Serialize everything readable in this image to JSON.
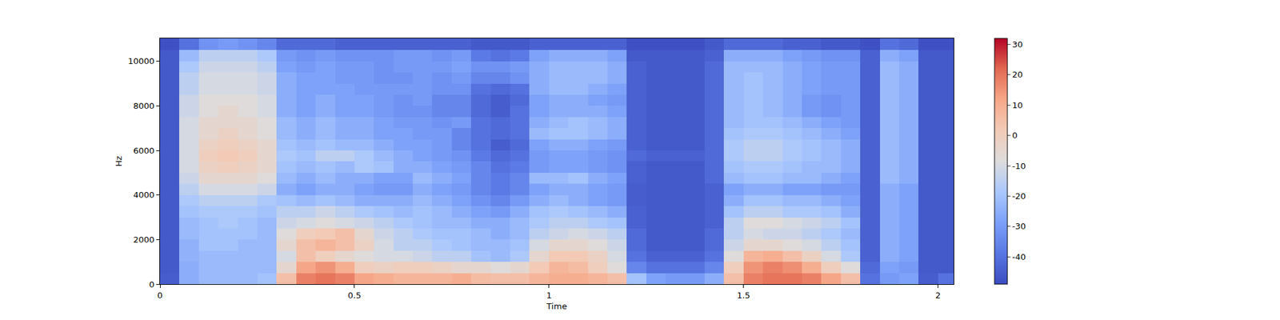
{
  "chart_data": {
    "type": "heatmap",
    "xlabel": "Time",
    "ylabel": "Hz",
    "x": [
      0,
      0.05,
      0.1,
      0.15,
      0.2,
      0.25,
      0.3,
      0.35,
      0.4,
      0.45,
      0.5,
      0.55,
      0.6,
      0.65,
      0.7,
      0.75,
      0.8,
      0.85,
      0.9,
      0.95,
      1,
      1.05,
      1.1,
      1.15,
      1.2,
      1.25,
      1.3,
      1.35,
      1.4,
      1.45,
      1.5,
      1.55,
      1.6,
      1.65,
      1.7,
      1.75,
      1.8,
      1.85,
      1.9,
      1.95,
      2,
      2.05
    ],
    "y": [
      0,
      500,
      1000,
      1500,
      2000,
      2500,
      3000,
      3500,
      4000,
      4500,
      5000,
      5500,
      6000,
      6500,
      7000,
      7500,
      8000,
      8500,
      9000,
      9500,
      10000,
      10500,
      11025
    ],
    "xlim": [
      0,
      2.04
    ],
    "ylim": [
      0,
      11025
    ],
    "xticks": [
      0,
      0.5,
      1,
      1.5,
      2
    ],
    "yticks": [
      0,
      2000,
      4000,
      6000,
      8000,
      10000
    ],
    "cells": [
      [
        -45,
        -25,
        -22,
        -22,
        -22,
        -20,
        5,
        18,
        20,
        18,
        12,
        10,
        8,
        8,
        8,
        10,
        6,
        5,
        5,
        8,
        10,
        10,
        8,
        5,
        -20,
        -28,
        -30,
        -30,
        -25,
        5,
        18,
        20,
        20,
        18,
        12,
        5,
        -40,
        -30,
        -28,
        -45,
        -40
      ],
      [
        -46,
        -25,
        -22,
        -22,
        -22,
        -22,
        -5,
        12,
        15,
        10,
        0,
        -2,
        0,
        0,
        -2,
        -5,
        -5,
        -8,
        -5,
        2,
        8,
        6,
        0,
        -8,
        -35,
        -40,
        -40,
        -40,
        -35,
        0,
        15,
        18,
        16,
        10,
        0,
        -8,
        -42,
        -28,
        -30,
        -46,
        -46
      ],
      [
        -46,
        -24,
        -22,
        -22,
        -22,
        -22,
        -10,
        5,
        0,
        -5,
        -8,
        -10,
        -10,
        -12,
        -15,
        -15,
        -20,
        -22,
        -18,
        -5,
        2,
        2,
        -2,
        -10,
        -40,
        -44,
        -44,
        -44,
        -40,
        -8,
        8,
        10,
        5,
        -2,
        -10,
        -18,
        -44,
        -25,
        -28,
        -46,
        -46
      ],
      [
        -46,
        -24,
        -20,
        -20,
        -22,
        -22,
        -5,
        5,
        8,
        5,
        -2,
        -10,
        -15,
        -15,
        -18,
        -20,
        -22,
        -22,
        -20,
        -10,
        -5,
        -5,
        -8,
        -12,
        -42,
        -46,
        -46,
        -46,
        -42,
        -12,
        -5,
        -5,
        -8,
        -10,
        -15,
        -20,
        -44,
        -25,
        -28,
        -46,
        -46
      ],
      [
        -46,
        -22,
        -20,
        -20,
        -20,
        -22,
        -8,
        0,
        2,
        5,
        -5,
        -12,
        -15,
        -18,
        -20,
        -20,
        -22,
        -25,
        -22,
        -15,
        -12,
        -10,
        -12,
        -15,
        -42,
        -46,
        -46,
        -46,
        -42,
        -15,
        -10,
        -12,
        -12,
        -15,
        -18,
        -22,
        -44,
        -25,
        -28,
        -46,
        -46
      ],
      [
        -46,
        -22,
        -20,
        -18,
        -20,
        -22,
        -12,
        -10,
        -8,
        -10,
        -12,
        -15,
        -18,
        -20,
        -22,
        -22,
        -25,
        -25,
        -22,
        -18,
        -15,
        -15,
        -18,
        -20,
        -44,
        -46,
        -46,
        -46,
        -44,
        -15,
        -8,
        -8,
        -10,
        -12,
        -15,
        -20,
        -44,
        -25,
        -28,
        -46,
        -46
      ],
      [
        -46,
        -20,
        -18,
        -18,
        -18,
        -20,
        -15,
        -15,
        -12,
        -15,
        -18,
        -20,
        -22,
        -20,
        -22,
        -25,
        -28,
        -30,
        -25,
        -20,
        -18,
        -20,
        -22,
        -25,
        -44,
        -46,
        -46,
        -46,
        -44,
        -20,
        -15,
        -15,
        -18,
        -18,
        -20,
        -25,
        -44,
        -25,
        -28,
        -46,
        -46
      ],
      [
        -46,
        -18,
        -15,
        -15,
        -15,
        -18,
        -20,
        -22,
        -20,
        -22,
        -25,
        -25,
        -25,
        -22,
        -25,
        -28,
        -32,
        -35,
        -30,
        -25,
        -22,
        -25,
        -28,
        -30,
        -45,
        -46,
        -46,
        -46,
        -44,
        -25,
        -20,
        -20,
        -22,
        -22,
        -25,
        -28,
        -44,
        -25,
        -28,
        -46,
        -46
      ],
      [
        -46,
        -15,
        -10,
        -10,
        -10,
        -12,
        -25,
        -28,
        -25,
        -25,
        -28,
        -30,
        -30,
        -25,
        -28,
        -30,
        -35,
        -38,
        -35,
        -28,
        -25,
        -25,
        -28,
        -30,
        -45,
        -46,
        -46,
        -46,
        -44,
        -28,
        -25,
        -25,
        -28,
        -28,
        -30,
        -30,
        -44,
        -25,
        -28,
        -46,
        -46
      ],
      [
        -46,
        -12,
        -5,
        -5,
        -5,
        -8,
        -22,
        -25,
        -22,
        -25,
        -25,
        -28,
        -28,
        -22,
        -25,
        -28,
        -35,
        -38,
        -35,
        -22,
        -22,
        -20,
        -25,
        -28,
        -44,
        -46,
        -46,
        -46,
        -42,
        -22,
        -20,
        -20,
        -22,
        -22,
        -25,
        -28,
        -44,
        -22,
        -25,
        -46,
        -46
      ],
      [
        -46,
        -10,
        -2,
        0,
        -2,
        -5,
        -20,
        -22,
        -20,
        -22,
        -18,
        -20,
        -25,
        -25,
        -28,
        -30,
        -35,
        -40,
        -38,
        -30,
        -28,
        -28,
        -30,
        -32,
        -44,
        -46,
        -46,
        -46,
        -42,
        -20,
        -18,
        -18,
        -20,
        -22,
        -22,
        -25,
        -44,
        -22,
        -25,
        -46,
        -46
      ],
      [
        -46,
        -10,
        0,
        2,
        0,
        -5,
        -18,
        -20,
        -15,
        -15,
        -18,
        -22,
        -25,
        -28,
        -30,
        -32,
        -38,
        -42,
        -40,
        -30,
        -28,
        -28,
        -30,
        -32,
        -42,
        -44,
        -44,
        -44,
        -42,
        -18,
        -15,
        -15,
        -18,
        -20,
        -22,
        -25,
        -44,
        -22,
        -25,
        -46,
        -46
      ],
      [
        -46,
        -10,
        -2,
        0,
        -2,
        -5,
        -20,
        -22,
        -20,
        -22,
        -22,
        -25,
        -28,
        -28,
        -30,
        -35,
        -40,
        -45,
        -42,
        -28,
        -25,
        -25,
        -28,
        -30,
        -44,
        -46,
        -46,
        -46,
        -42,
        -18,
        -15,
        -15,
        -18,
        -20,
        -22,
        -25,
        -44,
        -22,
        -25,
        -46,
        -46
      ],
      [
        -46,
        -10,
        -5,
        -2,
        -5,
        -8,
        -22,
        -25,
        -22,
        -25,
        -25,
        -28,
        -28,
        -30,
        -30,
        -35,
        -40,
        -42,
        -40,
        -22,
        -20,
        -20,
        -22,
        -25,
        -44,
        -46,
        -46,
        -46,
        -42,
        -20,
        -18,
        -18,
        -20,
        -22,
        -25,
        -28,
        -44,
        -22,
        -25,
        -46,
        -46
      ],
      [
        -46,
        -10,
        -5,
        -5,
        -5,
        -8,
        -22,
        -25,
        -22,
        -25,
        -25,
        -28,
        -30,
        -30,
        -32,
        -30,
        -40,
        -42,
        -40,
        -25,
        -22,
        -20,
        -22,
        -25,
        -44,
        -46,
        -46,
        -46,
        -42,
        -22,
        -20,
        -20,
        -22,
        -25,
        -28,
        -30,
        -44,
        -22,
        -25,
        -46,
        -46
      ],
      [
        -46,
        -12,
        -8,
        -5,
        -8,
        -10,
        -25,
        -28,
        -25,
        -28,
        -28,
        -30,
        -32,
        -32,
        -35,
        -35,
        -42,
        -45,
        -40,
        -28,
        -25,
        -25,
        -25,
        -28,
        -44,
        -46,
        -46,
        -46,
        -42,
        -22,
        -20,
        -22,
        -25,
        -30,
        -32,
        -30,
        -44,
        -22,
        -25,
        -46,
        -46
      ],
      [
        -46,
        -12,
        -8,
        -8,
        -8,
        -10,
        -25,
        -28,
        -25,
        -28,
        -28,
        -30,
        -32,
        -30,
        -35,
        -35,
        -42,
        -45,
        -42,
        -28,
        -25,
        -25,
        -28,
        -30,
        -44,
        -46,
        -46,
        -46,
        -42,
        -22,
        -20,
        -22,
        -25,
        -30,
        -32,
        -30,
        -44,
        -22,
        -25,
        -46,
        -46
      ],
      [
        -46,
        -15,
        -10,
        -10,
        -10,
        -12,
        -25,
        -28,
        -28,
        -28,
        -30,
        -30,
        -30,
        -30,
        -32,
        -32,
        -40,
        -42,
        -40,
        -25,
        -22,
        -22,
        -25,
        -28,
        -44,
        -46,
        -46,
        -46,
        -42,
        -22,
        -20,
        -22,
        -25,
        -28,
        -30,
        -30,
        -44,
        -22,
        -25,
        -46,
        -46
      ],
      [
        -46,
        -15,
        -10,
        -10,
        -10,
        -12,
        -25,
        -28,
        -28,
        -30,
        -30,
        -32,
        -32,
        -30,
        -32,
        -30,
        -35,
        -35,
        -32,
        -25,
        -22,
        -22,
        -22,
        -25,
        -44,
        -46,
        -46,
        -46,
        -42,
        -22,
        -20,
        -22,
        -25,
        -28,
        -30,
        -30,
        -44,
        -22,
        -25,
        -46,
        -46
      ],
      [
        -46,
        -18,
        -12,
        -12,
        -12,
        -15,
        -28,
        -30,
        -28,
        -30,
        -30,
        -32,
        -30,
        -30,
        -30,
        -28,
        -32,
        -32,
        -30,
        -25,
        -22,
        -22,
        -22,
        -25,
        -44,
        -46,
        -46,
        -46,
        -42,
        -22,
        -22,
        -22,
        -25,
        -28,
        -30,
        -30,
        -44,
        -22,
        -25,
        -46,
        -46
      ],
      [
        -46,
        -22,
        -15,
        -15,
        -15,
        -18,
        -30,
        -32,
        -30,
        -32,
        -32,
        -32,
        -30,
        -30,
        -32,
        -30,
        -38,
        -40,
        -38,
        -28,
        -25,
        -25,
        -25,
        -28,
        -46,
        -46,
        -46,
        -46,
        -44,
        -25,
        -25,
        -25,
        -28,
        -30,
        -32,
        -32,
        -44,
        -25,
        -28,
        -46,
        -46
      ],
      [
        -48,
        -40,
        -32,
        -30,
        -32,
        -35,
        -42,
        -42,
        -42,
        -44,
        -44,
        -44,
        -44,
        -44,
        -44,
        -44,
        -46,
        -46,
        -46,
        -44,
        -44,
        -44,
        -44,
        -44,
        -48,
        -48,
        -48,
        -48,
        -46,
        -42,
        -42,
        -42,
        -44,
        -44,
        -46,
        -46,
        -48,
        -40,
        -42,
        -48,
        -48
      ]
    ],
    "colorbar_range": [
      -49,
      32
    ],
    "colorbar_ticks": [
      -40,
      -30,
      -20,
      -10,
      0,
      10,
      20,
      30
    ]
  }
}
